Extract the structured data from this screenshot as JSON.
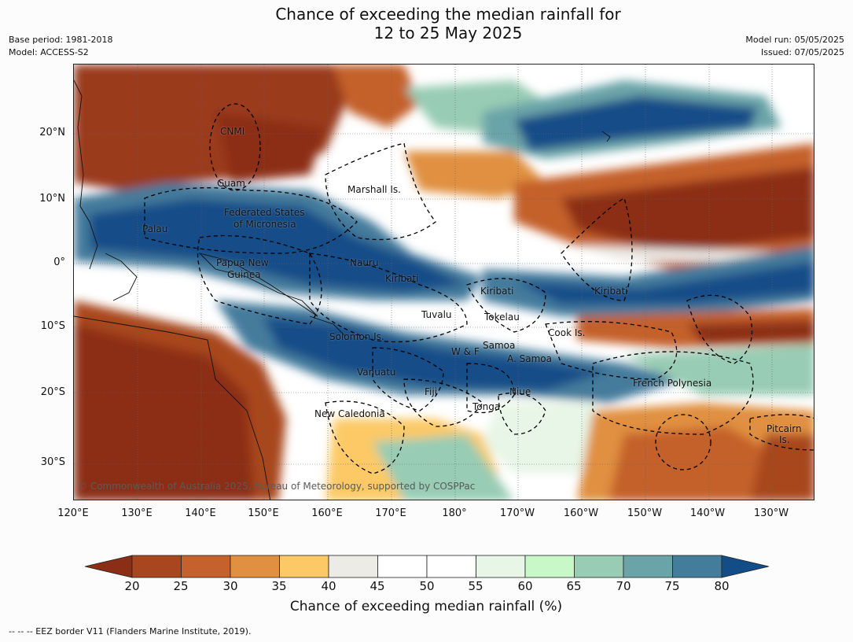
{
  "title_line1": "Chance of exceeding the median rainfall for",
  "title_line2": "12 to 25 May 2025",
  "meta_left": [
    "Base period: 1981-2018",
    "Model: ACCESS-S2"
  ],
  "meta_right": [
    "Model run: 05/05/2025",
    "Issued: 07/05/2025"
  ],
  "lat_labels": [
    "20°N",
    "10°N",
    "0°",
    "10°S",
    "20°S",
    "30°S"
  ],
  "lon_labels": [
    "120°E",
    "130°E",
    "140°E",
    "150°E",
    "160°E",
    "170°E",
    "180°",
    "170°W",
    "160°W",
    "150°W",
    "140°W",
    "130°W"
  ],
  "places": [
    "CNMI",
    "Guam",
    "Marshall Is.",
    "Federated States",
    "of Micronesia",
    "Palau",
    "Papua New",
    "Guinea",
    "Nauru",
    "Kiribati",
    "Kiribati",
    "Kiribati",
    "Tuvalu",
    "Tokelau",
    "Cook Is.",
    "Solomon Is.",
    "Samoa",
    "W & F",
    "A. Samoa",
    "Vanuatu",
    "Fiji",
    "Niue",
    "French Polynesia",
    "Tonga",
    "New Caledonia",
    "Pitcairn",
    "Is."
  ],
  "copyright": "© Commonwealth of Australia 2025, Bureau of Meteorology, supported by COSPPac",
  "colorbar": {
    "ticks": [
      "20",
      "25",
      "30",
      "35",
      "40",
      "45",
      "50",
      "55",
      "60",
      "65",
      "70",
      "75",
      "80"
    ],
    "colors": [
      "#8c2d15",
      "#a8471f",
      "#c4612c",
      "#e09040",
      "#fcc966",
      "#ecebe6",
      "#ffffff",
      "#ffffff",
      "#e7f6e6",
      "#c8f8c8",
      "#98ccb4",
      "#6aa4a8",
      "#447c9c",
      "#124d88"
    ],
    "label": "Chance of exceeding median rainfall (%)"
  },
  "footnote": "--  --  -- EEZ border V11 (Flanders Marine Institute, 2019)."
}
